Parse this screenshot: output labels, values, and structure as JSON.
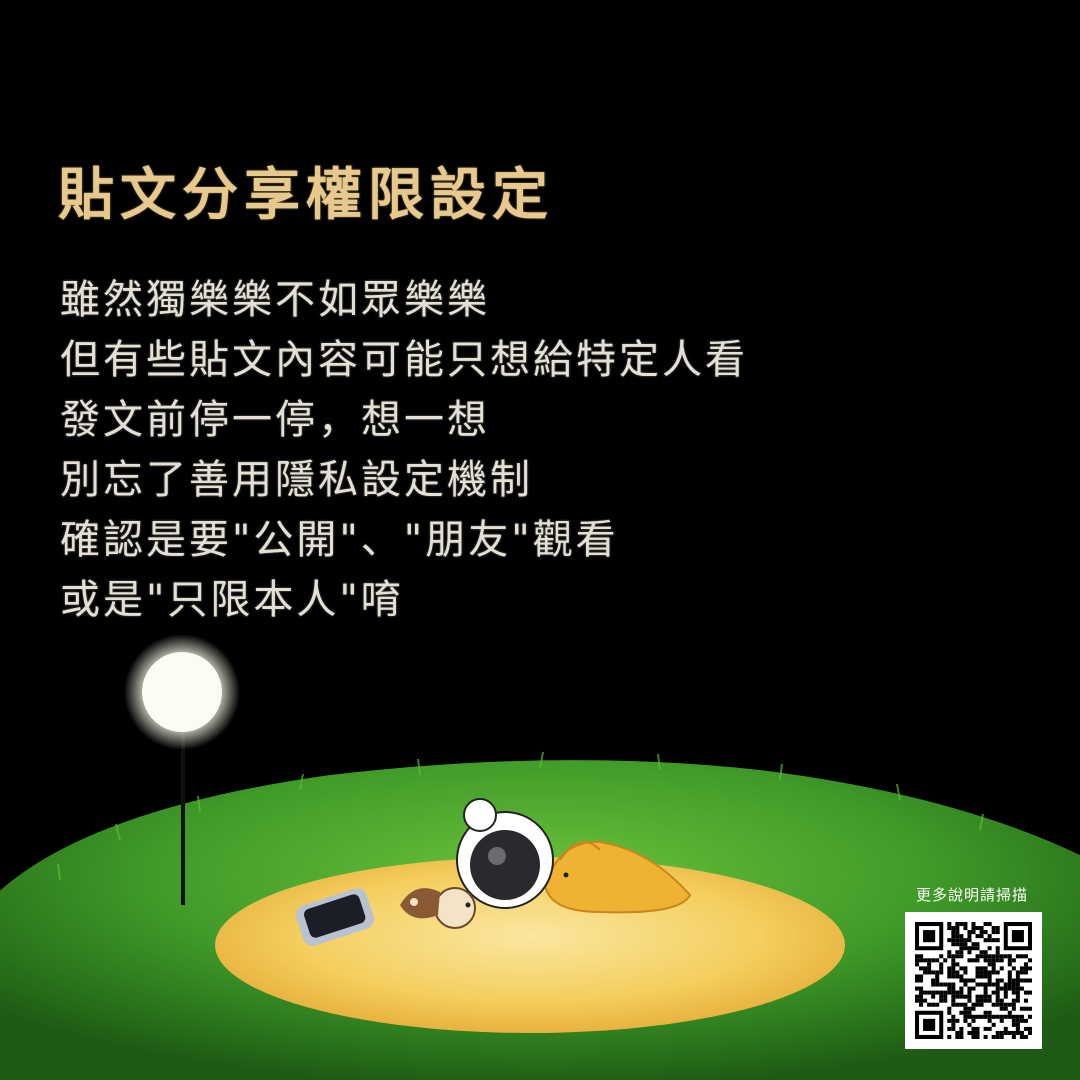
{
  "title": "貼文分享權限設定",
  "body_lines": [
    "雖然獨樂樂不如眾樂樂",
    "但有些貼文內容可能只想給特定人看",
    "發文前停一停，想一想",
    "別忘了善用隱私設定機制",
    "確認是要\"公開\"、\"朋友\"觀看",
    "或是\"只限本人\"唷"
  ],
  "qr": {
    "caption": "更多說明請掃描"
  },
  "colors": {
    "background": "#000000",
    "title": "#e8c98d",
    "body_text": "#e4e0d6",
    "grass": "#4aa52e",
    "sand": "#f2c85a",
    "character": "#efb233"
  },
  "icons": [
    "street-lamp-icon",
    "phone-icon",
    "sleeping-character-icon",
    "qr-code-icon"
  ]
}
